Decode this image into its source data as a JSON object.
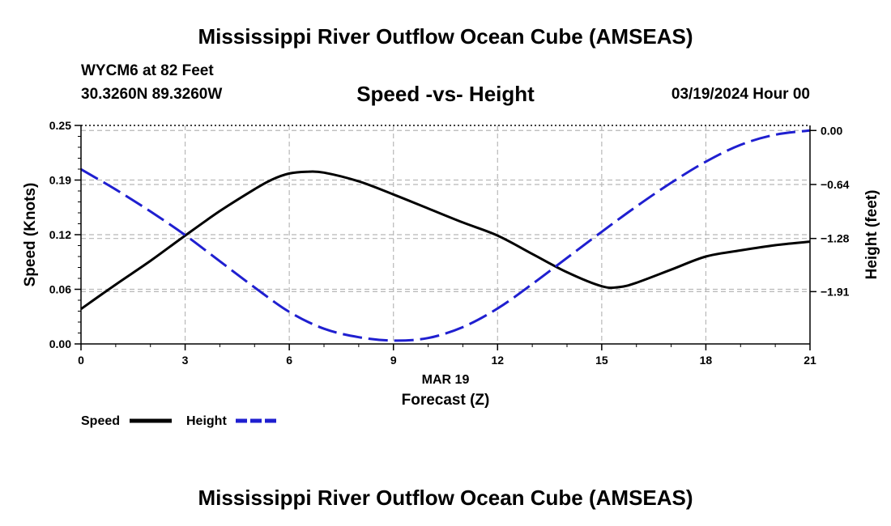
{
  "header": {
    "title": "Mississippi River Outflow Ocean Cube (AMSEAS)",
    "station": "WYCM6 at 82 Feet",
    "coords": "30.3260N  89.3260W",
    "subtitle": "Speed -vs- Height",
    "datetime": "03/19/2024 Hour 00"
  },
  "footer": {
    "title": "Mississippi River Outflow Ocean Cube (AMSEAS)"
  },
  "chart_data": {
    "type": "line",
    "title": "Speed -vs- Height",
    "xlabel": "Forecast (Z)",
    "xlabel_date": "MAR 19",
    "ylabel": "Speed (Knots)",
    "y2label": "Height (feet)",
    "xlim": [
      0,
      21
    ],
    "ylim": [
      0,
      0.25
    ],
    "y2lim": [
      -2.53,
      0.06
    ],
    "xticks": [
      0,
      3,
      6,
      9,
      12,
      15,
      18,
      21
    ],
    "xtick_labels": [
      "0",
      "3",
      "6",
      "9",
      "12",
      "15",
      "18",
      "21"
    ],
    "yticks": [
      0,
      0.0625,
      0.125,
      0.1875,
      0.25
    ],
    "ytick_labels": [
      "0.00",
      "0.06",
      "0.12",
      "0.19",
      "0.25"
    ],
    "y2ticks": [
      0.0,
      -0.64,
      -1.28,
      -1.91
    ],
    "y2tick_labels": [
      "0.00",
      "−0.64",
      "−1.28",
      "−1.91"
    ],
    "grid": true,
    "legend": {
      "position": "bottom-left",
      "speed_label": "Speed",
      "height_label": "Height"
    },
    "series": [
      {
        "name": "Speed",
        "axis": "left",
        "color": "#000000",
        "style": "solid",
        "x": [
          0,
          1,
          2,
          3,
          4,
          5,
          5.5,
          6,
          6.5,
          7,
          8,
          9,
          10,
          11,
          12,
          13,
          14,
          15,
          15.5,
          16,
          17,
          18,
          19,
          20,
          21
        ],
        "values": [
          0.04,
          0.068,
          0.095,
          0.124,
          0.152,
          0.177,
          0.188,
          0.195,
          0.197,
          0.196,
          0.186,
          0.171,
          0.155,
          0.139,
          0.124,
          0.103,
          0.082,
          0.066,
          0.065,
          0.07,
          0.085,
          0.1,
          0.107,
          0.113,
          0.117
        ]
      },
      {
        "name": "Height",
        "axis": "right",
        "color": "#1f1fd0",
        "style": "dashed",
        "x": [
          0,
          1,
          2,
          3,
          4,
          5,
          6,
          7,
          8,
          9,
          10,
          11,
          12,
          13,
          14,
          15,
          16,
          17,
          18,
          19,
          20,
          21
        ],
        "values": [
          -0.46,
          -0.7,
          -0.96,
          -1.24,
          -1.55,
          -1.86,
          -2.15,
          -2.35,
          -2.45,
          -2.49,
          -2.46,
          -2.33,
          -2.11,
          -1.82,
          -1.51,
          -1.2,
          -0.9,
          -0.62,
          -0.37,
          -0.17,
          -0.05,
          0.0
        ]
      }
    ]
  }
}
